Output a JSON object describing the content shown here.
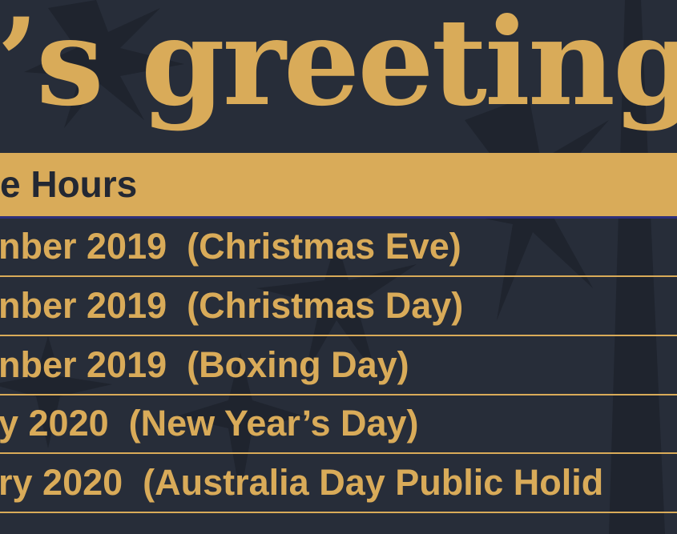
{
  "colors": {
    "background": "#272d39",
    "gold": "#d9ab59",
    "dark_text": "#232833",
    "bar_underline": "#2e2f7a"
  },
  "title": "’s greeting",
  "header_bar": {
    "label": "e Hours"
  },
  "rows": [
    {
      "text": "nber 2019  (Christmas Eve)"
    },
    {
      "text": "nber 2019  (Christmas Day)"
    },
    {
      "text": "nber 2019  (Boxing Day)"
    },
    {
      "text": "y 2020  (New Year’s Day)"
    },
    {
      "text": "ry 2020  (Australia Day Public Holid"
    }
  ]
}
